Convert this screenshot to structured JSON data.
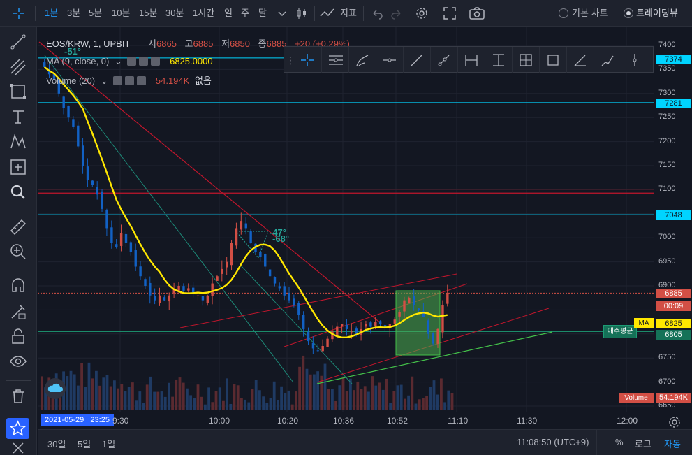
{
  "topbar": {
    "intervals": [
      "1분",
      "3분",
      "5분",
      "10분",
      "15분",
      "30분",
      "1시간",
      "일",
      "주",
      "달"
    ],
    "active_interval": "1분",
    "indicator_label": "지표",
    "basic_chart_label": "기본 차트",
    "tradingview_label": "트레이딩뷰"
  },
  "legend": {
    "symbol": "EOS/KRW, 1, UPBIT",
    "open_label": "시",
    "open_value": "6865",
    "high_label": "고",
    "high_value": "6885",
    "low_label": "저",
    "low_value": "6850",
    "close_label": "종",
    "close_value": "6885",
    "change": "+20 (+0.29%)",
    "ma_label": "MA (9, close, 0)",
    "ma_value": "6825.0000",
    "volume_label": "Volume (20)",
    "volume_value": "54.194K",
    "volume_extra": "없음"
  },
  "annotations": {
    "angle_top": "-51°",
    "angle_mid1": "-47°",
    "angle_mid2": "-68°",
    "buy_avg_label": "매수평균"
  },
  "price_axis": {
    "ticks": [
      "7400",
      "7350",
      "7300",
      "7250",
      "7200",
      "7150",
      "7100",
      "7050",
      "7000",
      "6950",
      "6900",
      "6850",
      "6800",
      "6750",
      "6700",
      "6650"
    ],
    "tags": {
      "p7374": "7374",
      "p7281": "7281",
      "p7048": "7048",
      "p6885": "6885",
      "countdown": "00:09",
      "ma_tag_name": "MA",
      "ma_tag_value": "6825",
      "p6805": "6805",
      "volume_name": "Volume",
      "volume_value": "54.194K"
    }
  },
  "time_axis": {
    "date_badge": "2021-05-29   23:25",
    "labels": [
      "9:30",
      "10:00",
      "10:20",
      "10:36",
      "10:52",
      "11:10",
      "11:30",
      "12:00"
    ]
  },
  "bottombar": {
    "ranges": [
      "30일",
      "5일",
      "1일"
    ],
    "clock": "11:08:50 (UTC+9)",
    "percent": "%",
    "log": "로그",
    "auto": "자동"
  },
  "colors": {
    "up": "#d24f45",
    "down": "#1261c4",
    "ma": "#ffe700",
    "cyan": "#00d4ff",
    "accent": "#2196f3",
    "green_line": "#44c24a"
  }
}
